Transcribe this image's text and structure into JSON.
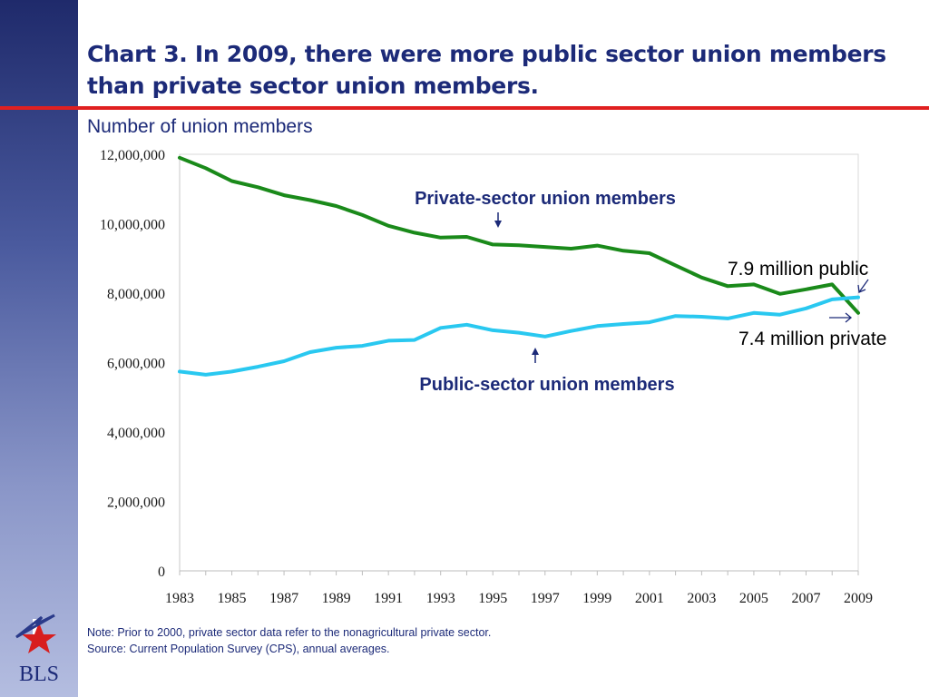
{
  "title": "Chart 3.  In 2009, there were more public sector union members than  private sector union members.",
  "subtitle": "Number of union members",
  "notes": {
    "note": "Note: Prior to 2000, private sector data refer to the nonagricultural private sector.",
    "source": "Source:  Current Population Survey (CPS), annual averages."
  },
  "logo_text": "BLS",
  "colors": {
    "private": "#1a8a1a",
    "public": "#29c8f0",
    "title": "#1c2a78",
    "accent_red": "#e02020"
  },
  "chart_data": {
    "type": "line",
    "title": "",
    "xlabel": "",
    "ylabel": "Number of union members",
    "ylim": [
      0,
      12000000
    ],
    "xlim": [
      1983,
      2009
    ],
    "y_ticks": [
      "0",
      "2,000,000",
      "4,000,000",
      "6,000,000",
      "8,000,000",
      "10,000,000",
      "12,000,000"
    ],
    "y_tick_values": [
      0,
      2000000,
      4000000,
      6000000,
      8000000,
      10000000,
      12000000
    ],
    "x_ticks": [
      "1983",
      "1985",
      "1987",
      "1989",
      "1991",
      "1993",
      "1995",
      "1997",
      "1999",
      "2001",
      "2003",
      "2005",
      "2007",
      "2009"
    ],
    "x": [
      1983,
      1984,
      1985,
      1986,
      1987,
      1988,
      1989,
      1990,
      1991,
      1992,
      1993,
      1994,
      1995,
      1996,
      1997,
      1998,
      1999,
      2000,
      2001,
      2002,
      2003,
      2004,
      2005,
      2006,
      2007,
      2008,
      2009
    ],
    "series": [
      {
        "name": "Private-sector union members",
        "color": "#1a8a1a",
        "values": [
          11900000,
          11600000,
          11230000,
          11050000,
          10820000,
          10680000,
          10510000,
          10250000,
          9940000,
          9740000,
          9600000,
          9620000,
          9400000,
          9380000,
          9330000,
          9280000,
          9370000,
          9220000,
          9150000,
          8800000,
          8450000,
          8200000,
          8250000,
          7980000,
          8110000,
          8250000,
          7430000
        ]
      },
      {
        "name": "Public-sector union members",
        "color": "#29c8f0",
        "values": [
          5740000,
          5650000,
          5740000,
          5880000,
          6040000,
          6300000,
          6430000,
          6480000,
          6630000,
          6650000,
          7000000,
          7090000,
          6930000,
          6860000,
          6750000,
          6910000,
          7050000,
          7110000,
          7160000,
          7340000,
          7320000,
          7270000,
          7430000,
          7380000,
          7560000,
          7820000,
          7880000
        ]
      }
    ],
    "annotations": {
      "private_label": "Private-sector union members",
      "public_label": "Public-sector union members",
      "public_2009": "7.9 million public",
      "private_2009": "7.4 million private"
    },
    "grid": false,
    "legend": "none"
  }
}
